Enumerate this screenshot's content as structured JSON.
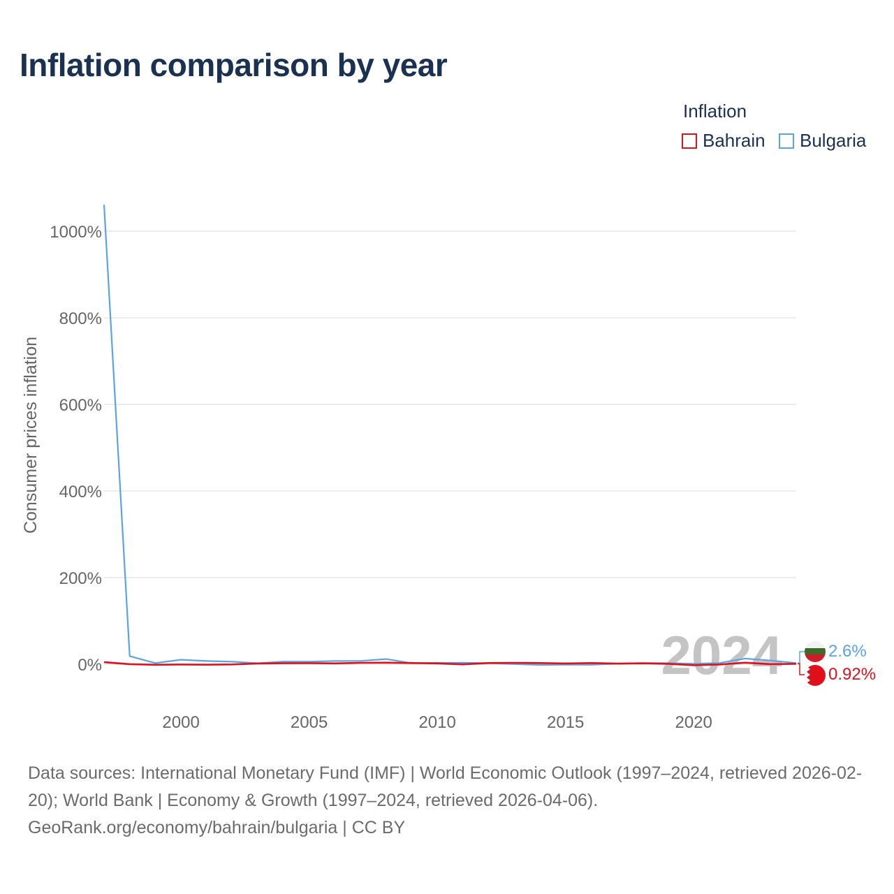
{
  "title": "Inflation comparison by year",
  "legend": {
    "title": "Inflation",
    "items": [
      {
        "label": "Bahrain",
        "color": "#e0101a"
      },
      {
        "label": "Bulgaria",
        "color": "#5ba3e6"
      }
    ]
  },
  "chart_data": {
    "type": "line",
    "title": "Inflation comparison by year",
    "xlabel": "",
    "ylabel": "Consumer prices inflation",
    "xlim": [
      1997,
      2024
    ],
    "ylim": [
      -90,
      1060
    ],
    "x_ticks": [
      2000,
      2005,
      2010,
      2015,
      2020
    ],
    "y_ticks": [
      0,
      200,
      400,
      600,
      800,
      1000
    ],
    "y_tick_labels": [
      "0%",
      "200%",
      "400%",
      "600%",
      "800%",
      "1000%"
    ],
    "grid": true,
    "highlight_year": "2024",
    "x": [
      1997,
      1998,
      1999,
      2000,
      2001,
      2002,
      2003,
      2004,
      2005,
      2006,
      2007,
      2008,
      2009,
      2010,
      2011,
      2012,
      2013,
      2014,
      2015,
      2016,
      2017,
      2018,
      2019,
      2020,
      2021,
      2022,
      2023,
      2024
    ],
    "series": [
      {
        "name": "Bahrain",
        "color": "#e0101a",
        "values": [
          4.6,
          0.2,
          -1.3,
          -0.7,
          -1.2,
          -0.5,
          1.7,
          2.2,
          2.6,
          2.0,
          3.3,
          3.5,
          2.8,
          2.0,
          -0.4,
          2.8,
          3.3,
          2.7,
          1.8,
          2.8,
          1.4,
          2.1,
          1.0,
          -2.3,
          -0.6,
          3.6,
          0.1,
          0.92
        ],
        "end_label": "0.92%"
      },
      {
        "name": "Bulgaria",
        "color": "#5ba3e6",
        "values": [
          1061,
          18.7,
          2.6,
          10.3,
          7.4,
          5.8,
          2.3,
          6.1,
          6.0,
          7.4,
          7.6,
          12.0,
          2.5,
          3.0,
          3.4,
          2.4,
          0.4,
          -1.6,
          -1.1,
          -1.3,
          1.2,
          2.6,
          2.5,
          1.2,
          2.8,
          13.0,
          8.6,
          2.6
        ],
        "end_label": "2.6%"
      }
    ]
  },
  "footer": {
    "line1": "Data sources: International Monetary Fund (IMF) | World Economic Outlook (1997–2024, retrieved 2026-02-20); World Bank | Economy & Growth (1997–2024, retrieved 2026-04-06).",
    "line2": "GeoRank.org/economy/bahrain/bulgaria | CC BY"
  },
  "colors": {
    "title": "#1a3152",
    "axis_text": "#666666",
    "grid": "#e6e6e6",
    "year_watermark": "#c4c4c4"
  }
}
